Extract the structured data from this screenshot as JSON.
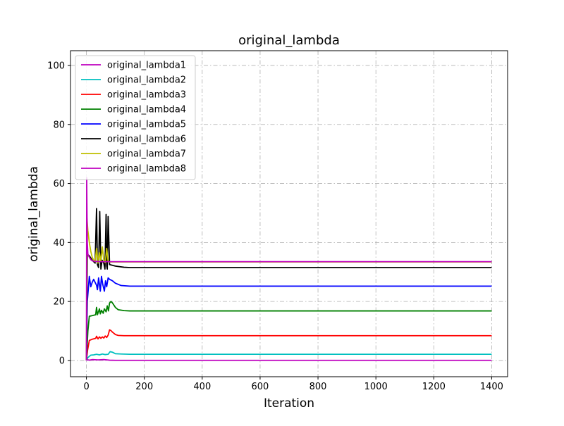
{
  "chart_data": {
    "type": "line",
    "title": "original_lambda",
    "xlabel": "Iteration",
    "ylabel": "original_lambda",
    "xlim": [
      -55,
      1455
    ],
    "ylim": [
      -5.5,
      105
    ],
    "xticks": [
      0,
      200,
      400,
      600,
      800,
      1000,
      1200,
      1400
    ],
    "yticks": [
      0,
      20,
      40,
      60,
      80,
      100
    ],
    "grid": true,
    "legend_position": "top-left",
    "series": [
      {
        "name": "original_lambda1",
        "color": "#bf00bf",
        "x": [
          0,
          3,
          10,
          20,
          40,
          60,
          80,
          100,
          150,
          1400
        ],
        "y": [
          0,
          0.3,
          0.1,
          0.3,
          0.2,
          0.3,
          0.1,
          0.05,
          0.05,
          0.05
        ]
      },
      {
        "name": "original_lambda2",
        "color": "#00bfbf",
        "x": [
          0,
          5,
          15,
          25,
          35,
          45,
          55,
          65,
          75,
          82,
          90,
          100,
          120,
          150,
          1400
        ],
        "y": [
          0,
          1.0,
          1.8,
          1.9,
          2.1,
          1.9,
          2.2,
          2.0,
          2.1,
          3.0,
          2.8,
          2.3,
          2.2,
          2.1,
          2.1
        ]
      },
      {
        "name": "original_lambda3",
        "color": "#ff0000",
        "x": [
          0,
          4,
          10,
          20,
          32,
          35,
          40,
          45,
          50,
          55,
          60,
          65,
          70,
          75,
          80,
          85,
          90,
          100,
          110,
          130,
          150,
          1400
        ],
        "y": [
          0,
          3.5,
          6.8,
          7.2,
          7.5,
          8.2,
          7.3,
          8.0,
          7.5,
          8.0,
          7.6,
          8.3,
          7.8,
          8.6,
          10.4,
          10.1,
          9.6,
          8.8,
          8.5,
          8.4,
          8.4,
          8.4
        ]
      },
      {
        "name": "original_lambda4",
        "color": "#008000",
        "x": [
          0,
          5,
          10,
          20,
          32,
          35,
          38,
          45,
          48,
          52,
          58,
          62,
          68,
          72,
          76,
          80,
          85,
          90,
          100,
          110,
          130,
          150,
          1400
        ],
        "y": [
          0,
          10,
          15,
          15.2,
          15.5,
          18,
          15.5,
          17.5,
          15.8,
          17,
          16,
          17.5,
          16.5,
          18.5,
          16.8,
          19.5,
          20,
          19.5,
          18,
          17.2,
          16.9,
          16.8,
          16.8
        ]
      },
      {
        "name": "original_lambda5",
        "color": "#0000ff",
        "x": [
          0,
          3,
          10,
          15,
          20,
          25,
          35,
          38,
          42,
          48,
          52,
          56,
          62,
          66,
          70,
          75,
          80,
          90,
          100,
          120,
          150,
          1400
        ],
        "y": [
          0,
          20,
          28.5,
          25,
          26.5,
          27.5,
          25.5,
          24,
          28,
          23.5,
          28.5,
          26,
          23.5,
          27,
          25,
          28,
          27.5,
          27,
          26.2,
          25.4,
          25.2,
          25.2
        ]
      },
      {
        "name": "original_lambda6",
        "color": "#000000",
        "x": [
          0,
          3,
          10,
          20,
          30,
          35,
          38,
          42,
          46,
          50,
          54,
          60,
          64,
          68,
          70,
          72,
          75,
          80,
          100,
          130,
          150,
          1400
        ],
        "y": [
          0,
          36,
          35.5,
          34,
          33,
          51.5,
          32.5,
          31.5,
          50.5,
          31,
          34,
          33,
          31,
          49.5,
          32,
          31,
          48.8,
          32.5,
          32,
          31.6,
          31.5,
          31.5
        ]
      },
      {
        "name": "original_lambda7",
        "color": "#bfbf00",
        "x": [
          0,
          2,
          5,
          10,
          15,
          20,
          25,
          30,
          35,
          40,
          45,
          50,
          55,
          60,
          65,
          70,
          75,
          80,
          90,
          100,
          1400
        ],
        "y": [
          0,
          48,
          44,
          40,
          37,
          35,
          34,
          33.5,
          38,
          33,
          36.5,
          33.5,
          38.5,
          34,
          33.2,
          38,
          33.5,
          33.4,
          33.4,
          33.4,
          33.4
        ]
      },
      {
        "name": "original_lambda8",
        "color": "#bf00bf",
        "x": [
          0,
          1,
          2,
          3,
          5,
          10,
          15,
          20,
          30,
          50,
          70,
          90,
          110,
          150,
          1400
        ],
        "y": [
          0,
          62,
          50,
          40,
          36,
          35,
          34.2,
          33.8,
          33.6,
          33.5,
          33.5,
          33.5,
          33.5,
          33.5,
          33.5
        ]
      }
    ]
  }
}
